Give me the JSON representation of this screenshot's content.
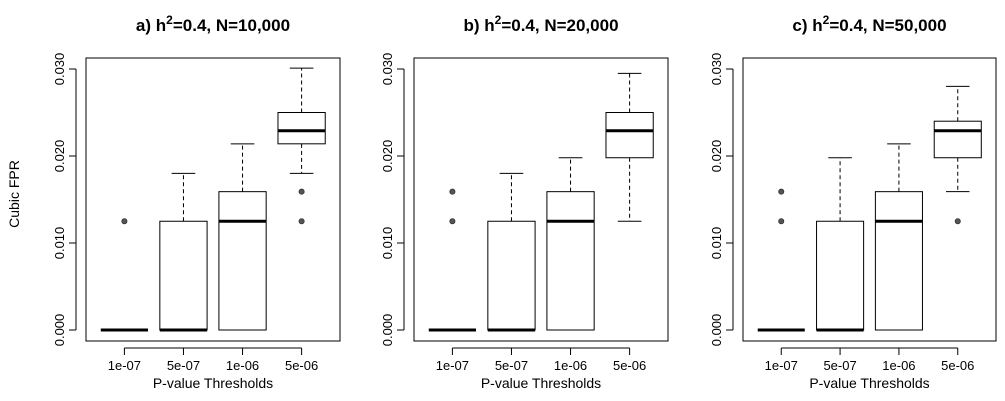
{
  "figure": {
    "ylabel": "Cubic FPR"
  },
  "chart_data": [
    {
      "type": "boxplot",
      "title_prefix": "a) h",
      "title_sup": "2",
      "title_suffix": "=0.4, N=10,000",
      "xlabel": "P-value Thresholds",
      "ylabel": "Cubic FPR",
      "ylim": [
        0,
        0.03
      ],
      "yticks": [
        "0.000",
        "0.010",
        "0.020",
        "0.030"
      ],
      "categories": [
        "1e-07",
        "5e-07",
        "1e-06",
        "5e-06"
      ],
      "boxes": [
        {
          "min": 0,
          "q1": 0,
          "median": 0,
          "q3": 0,
          "max": 0,
          "outliers": [
            0.0125
          ]
        },
        {
          "min": 0,
          "q1": 0,
          "median": 0,
          "q3": 0.0125,
          "max": 0.018,
          "outliers": []
        },
        {
          "min": 0,
          "q1": 0,
          "median": 0.0125,
          "q3": 0.0159,
          "max": 0.0214,
          "outliers": []
        },
        {
          "min": 0.018,
          "q1": 0.0214,
          "median": 0.0229,
          "q3": 0.025,
          "max": 0.0301,
          "outliers": [
            0.0159,
            0.0125
          ]
        }
      ]
    },
    {
      "type": "boxplot",
      "title_prefix": "b) h",
      "title_sup": "2",
      "title_suffix": "=0.4, N=20,000",
      "xlabel": "P-value Thresholds",
      "ylabel": "",
      "ylim": [
        0,
        0.03
      ],
      "yticks": [
        "0.000",
        "0.010",
        "0.020",
        "0.030"
      ],
      "categories": [
        "1e-07",
        "5e-07",
        "1e-06",
        "5e-06"
      ],
      "boxes": [
        {
          "min": 0,
          "q1": 0,
          "median": 0,
          "q3": 0,
          "max": 0,
          "outliers": [
            0.0125,
            0.0159
          ]
        },
        {
          "min": 0,
          "q1": 0,
          "median": 0,
          "q3": 0.0125,
          "max": 0.018,
          "outliers": []
        },
        {
          "min": 0,
          "q1": 0,
          "median": 0.0125,
          "q3": 0.0159,
          "max": 0.0198,
          "outliers": []
        },
        {
          "min": 0.0125,
          "q1": 0.0198,
          "median": 0.0229,
          "q3": 0.025,
          "max": 0.0295,
          "outliers": []
        }
      ]
    },
    {
      "type": "boxplot",
      "title_prefix": "c) h",
      "title_sup": "2",
      "title_suffix": "=0.4, N=50,000",
      "xlabel": "P-value Thresholds",
      "ylabel": "",
      "ylim": [
        0,
        0.03
      ],
      "yticks": [
        "0.000",
        "0.010",
        "0.020",
        "0.030"
      ],
      "categories": [
        "1e-07",
        "5e-07",
        "1e-06",
        "5e-06"
      ],
      "boxes": [
        {
          "min": 0,
          "q1": 0,
          "median": 0,
          "q3": 0,
          "max": 0,
          "outliers": [
            0.0125,
            0.0159
          ]
        },
        {
          "min": 0,
          "q1": 0,
          "median": 0,
          "q3": 0.0125,
          "max": 0.0198,
          "outliers": []
        },
        {
          "min": 0,
          "q1": 0,
          "median": 0.0125,
          "q3": 0.0159,
          "max": 0.0214,
          "outliers": []
        },
        {
          "min": 0.0159,
          "q1": 0.0198,
          "median": 0.0229,
          "q3": 0.024,
          "max": 0.028,
          "outliers": [
            0.0125
          ]
        }
      ]
    }
  ]
}
